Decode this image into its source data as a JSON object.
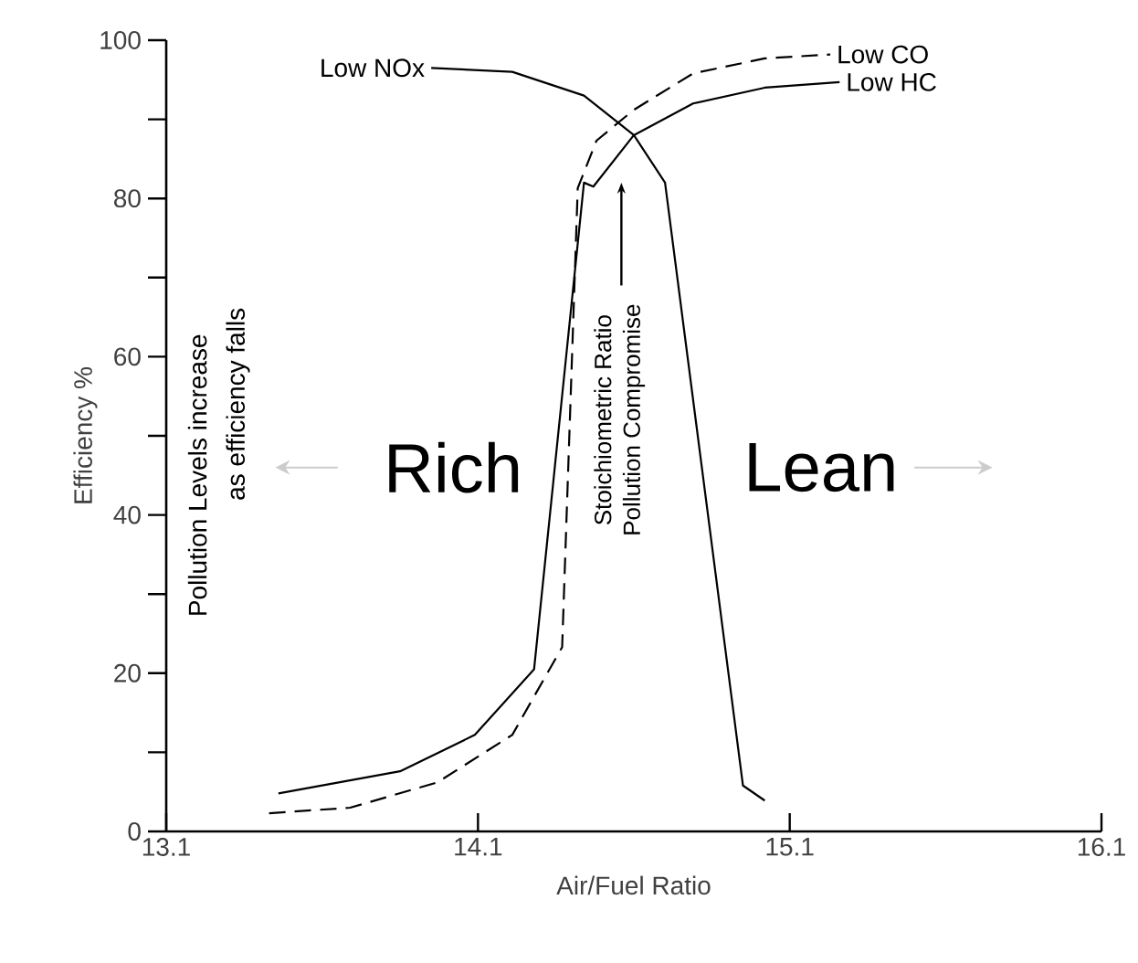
{
  "chart_data": {
    "type": "line",
    "xlabel": "Air/Fuel Ratio",
    "ylabel": "Efficiency %",
    "xlim": [
      13.1,
      16.1
    ],
    "xticks": [
      13.1,
      14.1,
      15.1,
      16.1
    ],
    "ylim": [
      0,
      100
    ],
    "yticks": [
      0,
      {
        "value": 10,
        "label": null
      },
      20,
      {
        "value": 30,
        "label": null
      },
      40,
      {
        "value": 50,
        "label": null
      },
      60,
      {
        "value": 70,
        "label": null
      },
      80,
      {
        "value": 90,
        "label": null
      },
      100
    ],
    "grid": false,
    "legend": false,
    "marker": "none",
    "series": [
      {
        "name": "Low NOx",
        "color": "#000000",
        "line_style": "solid",
        "x": [
          13.95,
          14.21,
          14.44,
          14.6,
          14.7,
          14.95,
          15.02
        ],
        "values": [
          96.5,
          96,
          93,
          88,
          82,
          5.8,
          3.9
        ]
      },
      {
        "name": "Low CO",
        "color": "#000000",
        "line_style": "dashed",
        "x": [
          13.43,
          13.69,
          13.97,
          14.21,
          14.37,
          14.42,
          14.48,
          14.6,
          14.79,
          15.02,
          15.23
        ],
        "values": [
          2.3,
          3,
          6.2,
          12.2,
          23.3,
          81.3,
          87.3,
          91.2,
          95.8,
          97.7,
          98.2
        ]
      },
      {
        "name": "Low HC",
        "color": "#000000",
        "line_style": "solid",
        "x": [
          13.46,
          13.85,
          14.09,
          14.28,
          14.44,
          14.47,
          14.6,
          14.79,
          15.02,
          15.26
        ],
        "values": [
          4.8,
          7.6,
          12.2,
          20.5,
          82,
          81.5,
          88,
          92,
          94,
          94.7
        ]
      }
    ],
    "annotations": [
      "Pollution Levels increase",
      "as efficiency falls",
      "Rich",
      "Lean",
      "Stoichiometric Ratio",
      "Pollution Compromise"
    ]
  }
}
